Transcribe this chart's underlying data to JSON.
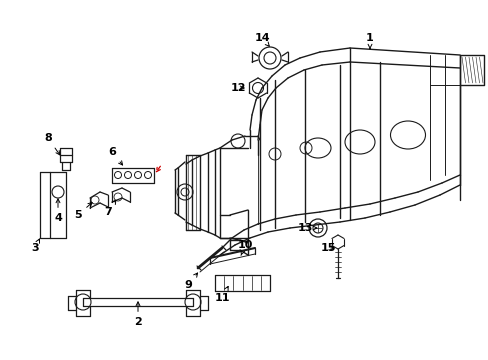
{
  "background_color": "#ffffff",
  "line_color": "#1a1a1a",
  "red_color": "#cc0000",
  "fig_width": 4.89,
  "fig_height": 3.6,
  "dpi": 100,
  "label_positions": {
    "1": [
      0.76,
      0.89,
      0.738,
      0.862
    ],
    "2": [
      0.258,
      0.118,
      0.252,
      0.148
    ],
    "3": [
      0.092,
      0.378,
      0.085,
      0.4
    ],
    "4": [
      0.128,
      0.448,
      0.108,
      0.468
    ],
    "5": [
      0.162,
      0.49,
      0.158,
      0.51
    ],
    "6": [
      0.215,
      0.592,
      0.225,
      0.572
    ],
    "7": [
      0.205,
      0.47,
      0.205,
      0.508
    ],
    "8": [
      0.092,
      0.628,
      0.115,
      0.608
    ],
    "9": [
      0.36,
      0.302,
      0.368,
      0.325
    ],
    "10": [
      0.472,
      0.39,
      0.452,
      0.39
    ],
    "11": [
      0.418,
      0.278,
      0.418,
      0.298
    ],
    "12": [
      0.478,
      0.74,
      0.495,
      0.748
    ],
    "13": [
      0.582,
      0.438,
      0.568,
      0.442
    ],
    "14": [
      0.535,
      0.895,
      0.538,
      0.872
    ],
    "15": [
      0.592,
      0.37,
      0.575,
      0.382
    ]
  }
}
